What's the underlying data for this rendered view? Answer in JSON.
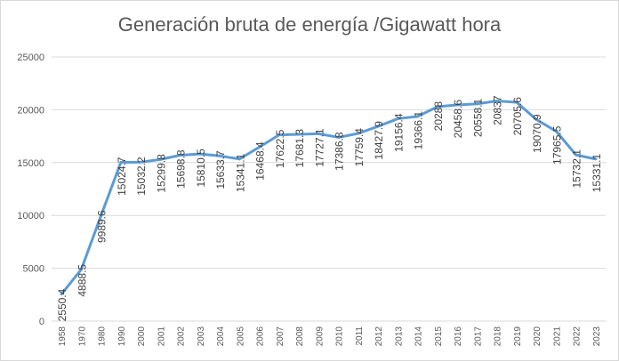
{
  "chart_data": {
    "type": "line",
    "title": "Generación bruta de energía /Gigawatt hora",
    "categories": [
      "1958",
      "1970",
      "1980",
      "1990",
      "2000",
      "2001",
      "2002",
      "2003",
      "2004",
      "2005",
      "2006",
      "2007",
      "2008",
      "2009",
      "2010",
      "2011",
      "2012",
      "2013",
      "2014",
      "2015",
      "2016",
      "2017",
      "2018",
      "2019",
      "2020",
      "2021",
      "2022",
      "2023"
    ],
    "series": [
      {
        "values": [
          2550.4,
          4888.5,
          9989.6,
          15024.7,
          15032.2,
          15299.8,
          15698.8,
          15810.5,
          15633.7,
          15341.1,
          16468.4,
          17622.5,
          17681.3,
          17727.1,
          17386.8,
          17759.4,
          18427.9,
          19156.4,
          19366.1,
          20288,
          20458.6,
          20558.1,
          20837,
          20705.6,
          19070.9,
          17965.5,
          15732.1,
          15331.1
        ],
        "labels": [
          "2550.4",
          "4888.5",
          "9989.6",
          "15024.7",
          "15032.2",
          "15299.8",
          "15698.8",
          "15810.5",
          "15633.7",
          "15341.1",
          "16468.4",
          "17622.5",
          "17681.3",
          "17727.1",
          "17386.8",
          "17759.4",
          "18427.9",
          "19156.4",
          "19366.1",
          "20288",
          "20458.6",
          "20558.1",
          "20837",
          "20705.6",
          "19070.9",
          "17965.5",
          "15732.1",
          "15331.1"
        ]
      }
    ],
    "y_ticks": [
      "0",
      "5000",
      "10000",
      "15000",
      "20000",
      "25000"
    ],
    "ylim": [
      0,
      25000
    ],
    "grid": true,
    "colors": {
      "line": "#5b9bd5",
      "grid": "#d9d9d9",
      "text": "#595959",
      "label": "#404040"
    }
  }
}
